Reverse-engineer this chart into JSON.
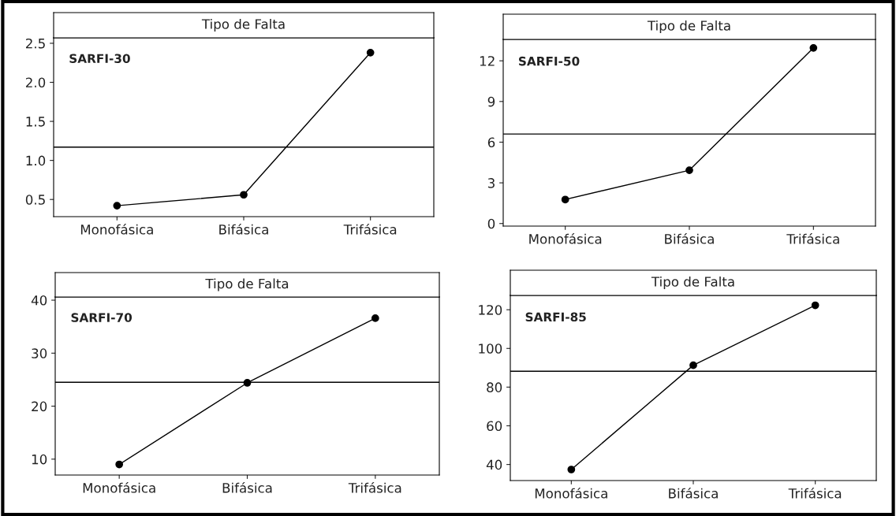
{
  "chart_data": [
    {
      "type": "line",
      "title": "Tipo de Falta",
      "categories": [
        "Monofásica",
        "Bifásica",
        "Trifásica"
      ],
      "series": [
        {
          "color": "#000000",
          "values": [
            0.42,
            0.56,
            2.38
          ]
        }
      ],
      "ylim": [
        0.28,
        2.57
      ],
      "yticks": [
        {
          "value": 0.5,
          "label": "0.5"
        },
        {
          "value": 1.0,
          "label": "1.0"
        },
        {
          "value": 1.5,
          "label": "1.5"
        },
        {
          "value": 2.0,
          "label": "2.0"
        },
        {
          "value": 2.5,
          "label": "2.5"
        }
      ],
      "ref_lines": [
        {
          "axis": "y",
          "value": 1.17,
          "color": "#000000"
        }
      ],
      "annotations": [
        "SARFI-30"
      ],
      "marker": "circle",
      "grid": false,
      "legend": false
    },
    {
      "type": "line",
      "title": "Tipo de Falta",
      "categories": [
        "Monofásica",
        "Bifásica",
        "Trifásica"
      ],
      "series": [
        {
          "color": "#000000",
          "values": [
            1.77,
            3.93,
            12.95
          ]
        }
      ],
      "ylim": [
        -0.19,
        13.58
      ],
      "yticks": [
        0,
        3,
        6,
        9,
        12
      ],
      "ref_lines": [
        {
          "axis": "y",
          "value": 6.6,
          "color": "#000000"
        }
      ],
      "annotations": [
        "SARFI-50"
      ],
      "marker": "circle",
      "grid": false,
      "legend": false
    },
    {
      "type": "line",
      "title": "Tipo de Falta",
      "categories": [
        "Monofásica",
        "Bifásica",
        "Trifásica"
      ],
      "series": [
        {
          "color": "#000000",
          "values": [
            9.0,
            24.4,
            36.6
          ]
        }
      ],
      "ylim": [
        7.0,
        40.6
      ],
      "yticks": [
        10,
        20,
        30,
        40
      ],
      "ref_lines": [
        {
          "axis": "y",
          "value": 24.5,
          "color": "#000000"
        }
      ],
      "annotations": [
        "SARFI-70"
      ],
      "marker": "circle",
      "grid": false,
      "legend": false
    },
    {
      "type": "line",
      "title": "Tipo de Falta",
      "categories": [
        "Monofásica",
        "Bifásica",
        "Trifásica"
      ],
      "series": [
        {
          "color": "#000000",
          "values": [
            37.4,
            91.3,
            122.3
          ]
        }
      ],
      "ylim": [
        31.7,
        127.4
      ],
      "yticks": [
        40,
        60,
        80,
        100,
        120
      ],
      "ref_lines": [
        {
          "axis": "y",
          "value": 88.2,
          "color": "#000000"
        }
      ],
      "annotations": [
        "SARFI-85"
      ],
      "marker": "circle",
      "grid": false,
      "legend": false
    }
  ]
}
